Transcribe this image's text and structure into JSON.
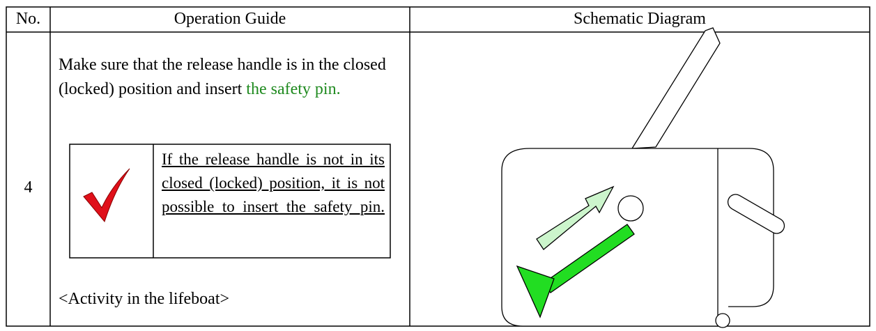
{
  "table": {
    "header": [
      "No.",
      "Operation Guide",
      "Schematic Diagram"
    ],
    "rows": [
      {
        "no": "4",
        "instruction": "Make sure that the release handle is in the closed (locked) position and insert",
        "highlight": "the safety pin.",
        "note": "If the release handle is not in its closed (locked) position, it is not possible to insert the safety pin.",
        "activity": "<Activity in the lifeboat>"
      }
    ]
  }
}
